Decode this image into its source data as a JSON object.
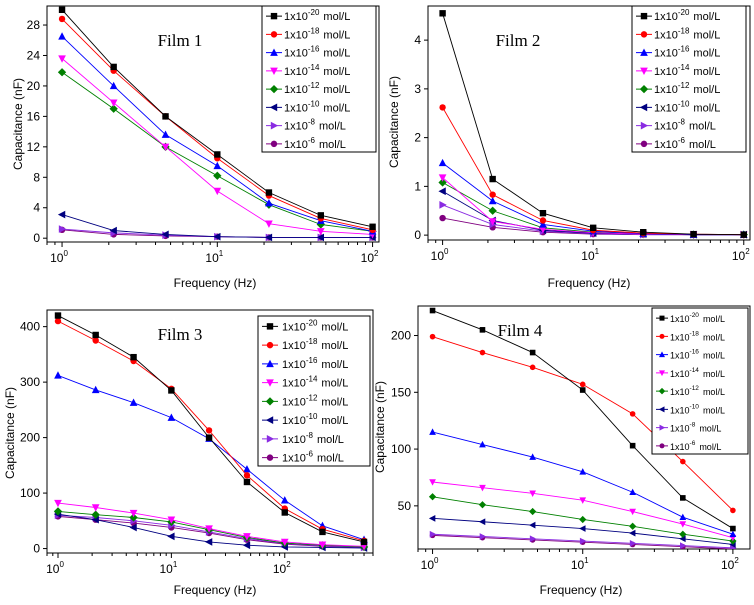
{
  "chart_data": [
    {
      "type": "line",
      "title": "Film 1",
      "xlabel": "Frequency (Hz)",
      "ylabel": "Capacitance (nF)",
      "xscale": "log",
      "xlim": [
        0.8,
        110
      ],
      "ylim": [
        -0.5,
        30.5
      ],
      "yticks": [
        0,
        4,
        8,
        12,
        16,
        20,
        24,
        28
      ],
      "xticks": [
        {
          "base": "10",
          "exp": "0"
        },
        {
          "base": "10",
          "exp": "1"
        },
        {
          "base": "10",
          "exp": "2"
        }
      ],
      "legend_position": "top-right",
      "x": [
        1,
        2.15,
        4.64,
        10,
        21.5,
        46.4,
        100
      ],
      "series": [
        {
          "name": "1x10-20 mol/L",
          "prefix": "1x10",
          "exp": "-20",
          "suffix": "mol/L",
          "color": "#000000",
          "marker": "square",
          "values": [
            30,
            22.5,
            16,
            11,
            6,
            3,
            1.5
          ]
        },
        {
          "name": "1x10-18 mol/L",
          "prefix": "1x10",
          "exp": "-18",
          "suffix": "mol/L",
          "color": "#ff0000",
          "marker": "circle",
          "values": [
            28.8,
            22,
            16,
            10.5,
            5.6,
            2.6,
            1.1
          ]
        },
        {
          "name": "1x10-16 mol/L",
          "prefix": "1x10",
          "exp": "-16",
          "suffix": "mol/L",
          "color": "#0000ff",
          "marker": "triangle-up",
          "values": [
            26.5,
            20,
            13.6,
            9.5,
            4.6,
            2.3,
            0.9
          ]
        },
        {
          "name": "1x10-14 mol/L",
          "prefix": "1x10",
          "exp": "-14",
          "suffix": "mol/L",
          "color": "#ff00ff",
          "marker": "triangle-down",
          "values": [
            23.6,
            17.8,
            12,
            6.2,
            1.9,
            0.9,
            0.5
          ]
        },
        {
          "name": "1x10-12 mol/L",
          "prefix": "1x10",
          "exp": "-12",
          "suffix": "mol/L",
          "color": "#008000",
          "marker": "diamond",
          "values": [
            21.8,
            17,
            12,
            8.2,
            4.4,
            1.8,
            0.9
          ]
        },
        {
          "name": "1x10-10 mol/L",
          "prefix": "1x10",
          "exp": "-10",
          "suffix": "mol/L",
          "color": "#000080",
          "marker": "triangle-left",
          "values": [
            3.1,
            1,
            0.5,
            0.2,
            0.1,
            0.1,
            0.1
          ]
        },
        {
          "name": "1x10-8 mol/L",
          "prefix": "1x10",
          "exp": "-8",
          "suffix": "mol/L",
          "color": "#8a2be2",
          "marker": "triangle-right",
          "values": [
            1.2,
            0.7,
            0.4,
            0.2,
            0.1,
            0.1,
            0.1
          ]
        },
        {
          "name": "1x10-6 mol/L",
          "prefix": "1x10",
          "exp": "-6",
          "suffix": "mol/L",
          "color": "#800080",
          "marker": "circle",
          "values": [
            1.1,
            0.5,
            0.3,
            0.2,
            0.1,
            0.1,
            0.1
          ]
        }
      ]
    },
    {
      "type": "line",
      "title": "Film 2",
      "xlabel": "Frequency (Hz)",
      "ylabel": "Capacitance (nF)",
      "xscale": "log",
      "xlim": [
        0.8,
        110
      ],
      "ylim": [
        -0.1,
        4.7
      ],
      "yticks": [
        0,
        1,
        2,
        3,
        4
      ],
      "xticks": [
        {
          "base": "10",
          "exp": "0"
        },
        {
          "base": "10",
          "exp": "1"
        },
        {
          "base": "10",
          "exp": "2"
        }
      ],
      "legend_position": "top-right",
      "x": [
        1,
        2.15,
        4.64,
        10,
        21.5,
        46.4,
        100
      ],
      "series": [
        {
          "name": "1x10-20 mol/L",
          "prefix": "1x10",
          "exp": "-20",
          "suffix": "mol/L",
          "color": "#000000",
          "marker": "square",
          "values": [
            4.55,
            1.15,
            0.45,
            0.15,
            0.06,
            0.02,
            0.01
          ]
        },
        {
          "name": "1x10-18 mol/L",
          "prefix": "1x10",
          "exp": "-18",
          "suffix": "mol/L",
          "color": "#ff0000",
          "marker": "circle",
          "values": [
            2.62,
            0.83,
            0.3,
            0.1,
            0.04,
            0.02,
            0.01
          ]
        },
        {
          "name": "1x10-16 mol/L",
          "prefix": "1x10",
          "exp": "-16",
          "suffix": "mol/L",
          "color": "#0000ff",
          "marker": "triangle-up",
          "values": [
            1.48,
            0.7,
            0.22,
            0.08,
            0.03,
            0.01,
            0.01
          ]
        },
        {
          "name": "1x10-14 mol/L",
          "prefix": "1x10",
          "exp": "-14",
          "suffix": "mol/L",
          "color": "#ff00ff",
          "marker": "triangle-down",
          "values": [
            1.18,
            0.28,
            0.12,
            0.05,
            0.02,
            0.01,
            0.01
          ]
        },
        {
          "name": "1x10-12 mol/L",
          "prefix": "1x10",
          "exp": "-12",
          "suffix": "mol/L",
          "color": "#008000",
          "marker": "diamond",
          "values": [
            1.08,
            0.5,
            0.15,
            0.06,
            0.02,
            0.01,
            0.01
          ]
        },
        {
          "name": "1x10-10 mol/L",
          "prefix": "1x10",
          "exp": "-10",
          "suffix": "mol/L",
          "color": "#000080",
          "marker": "triangle-left",
          "values": [
            0.9,
            0.3,
            0.1,
            0.04,
            0.02,
            0.01,
            0.01
          ]
        },
        {
          "name": "1x10-8 mol/L",
          "prefix": "1x10",
          "exp": "-8",
          "suffix": "mol/L",
          "color": "#8a2be2",
          "marker": "triangle-right",
          "values": [
            0.62,
            0.22,
            0.08,
            0.03,
            0.01,
            0.01,
            0.01
          ]
        },
        {
          "name": "1x10-6 mol/L",
          "prefix": "1x10",
          "exp": "-6",
          "suffix": "mol/L",
          "color": "#800080",
          "marker": "circle",
          "values": [
            0.35,
            0.16,
            0.06,
            0.02,
            0.01,
            0.01,
            0.01
          ]
        }
      ]
    },
    {
      "type": "line",
      "title": "Film 3",
      "xlabel": "Frequency (Hz)",
      "ylabel": "Capacitance (nF)",
      "xscale": "log",
      "xlim": [
        0.8,
        600
      ],
      "ylim": [
        -8,
        430
      ],
      "yticks": [
        0,
        100,
        200,
        300,
        400
      ],
      "xticks": [
        {
          "base": "10",
          "exp": "0"
        },
        {
          "base": "10",
          "exp": "1"
        },
        {
          "base": "10",
          "exp": "2"
        }
      ],
      "legend_position": "top-right",
      "x": [
        1,
        2.15,
        4.64,
        10,
        21.5,
        46.4,
        100,
        215,
        500
      ],
      "series": [
        {
          "name": "1x10-20 mol/L",
          "prefix": "1x10",
          "exp": "-20",
          "suffix": "mol/L",
          "color": "#000000",
          "marker": "square",
          "values": [
            420,
            385,
            345,
            285,
            200,
            120,
            65,
            30,
            12
          ]
        },
        {
          "name": "1x10-18 mol/L",
          "prefix": "1x10",
          "exp": "-18",
          "suffix": "mol/L",
          "color": "#ff0000",
          "marker": "circle",
          "values": [
            410,
            375,
            338,
            288,
            213,
            132,
            72,
            35,
            14
          ]
        },
        {
          "name": "1x10-16 mol/L",
          "prefix": "1x10",
          "exp": "-16",
          "suffix": "mol/L",
          "color": "#0000ff",
          "marker": "triangle-up",
          "values": [
            312,
            286,
            263,
            236,
            198,
            143,
            87,
            41,
            16
          ]
        },
        {
          "name": "1x10-14 mol/L",
          "prefix": "1x10",
          "exp": "-14",
          "suffix": "mol/L",
          "color": "#ff00ff",
          "marker": "triangle-down",
          "values": [
            82,
            74,
            64,
            52,
            36,
            22,
            12,
            7,
            4
          ]
        },
        {
          "name": "1x10-12 mol/L",
          "prefix": "1x10",
          "exp": "-12",
          "suffix": "mol/L",
          "color": "#008000",
          "marker": "diamond",
          "values": [
            67,
            61,
            56,
            48,
            34,
            20,
            10,
            6,
            3
          ]
        },
        {
          "name": "1x10-10 mol/L",
          "prefix": "1x10",
          "exp": "-10",
          "suffix": "mol/L",
          "color": "#000080",
          "marker": "triangle-left",
          "values": [
            62,
            52,
            38,
            22,
            12,
            6,
            3,
            2,
            1
          ]
        },
        {
          "name": "1x10-8 mol/L",
          "prefix": "1x10",
          "exp": "-8",
          "suffix": "mol/L",
          "color": "#8a2be2",
          "marker": "triangle-right",
          "values": [
            60,
            56,
            50,
            42,
            30,
            18,
            9,
            5,
            2
          ]
        },
        {
          "name": "1x10-6 mol/L",
          "prefix": "1x10",
          "exp": "-6",
          "suffix": "mol/L",
          "color": "#800080",
          "marker": "circle",
          "values": [
            58,
            52,
            46,
            38,
            28,
            16,
            8,
            4,
            2
          ]
        }
      ]
    },
    {
      "type": "line",
      "title": "Film 4",
      "xlabel": "Frequency (Hz)",
      "ylabel": "Capacitance (nF)",
      "xscale": "log",
      "xlim": [
        0.8,
        130
      ],
      "ylim": [
        12,
        226
      ],
      "yticks": [
        50,
        100,
        150,
        200
      ],
      "xticks": [
        {
          "base": "10",
          "exp": "0"
        },
        {
          "base": "10",
          "exp": "1"
        },
        {
          "base": "10",
          "exp": "2"
        }
      ],
      "legend_position": "top-right",
      "x": [
        1,
        2.15,
        4.64,
        10,
        21.5,
        46.4,
        100
      ],
      "series": [
        {
          "name": "1x10-20 mol/L",
          "prefix": "1x10",
          "exp": "-20",
          "suffix": "mol/L",
          "color": "#000000",
          "marker": "square",
          "values": [
            222,
            205,
            185,
            152,
            103,
            57,
            30
          ]
        },
        {
          "name": "1x10-18 mol/L",
          "prefix": "1x10",
          "exp": "-18",
          "suffix": "mol/L",
          "color": "#ff0000",
          "marker": "circle",
          "values": [
            199,
            185,
            172,
            157,
            131,
            89,
            46
          ]
        },
        {
          "name": "1x10-16 mol/L",
          "prefix": "1x10",
          "exp": "-16",
          "suffix": "mol/L",
          "color": "#0000ff",
          "marker": "triangle-up",
          "values": [
            115,
            104,
            93,
            80,
            62,
            40,
            25
          ]
        },
        {
          "name": "1x10-14 mol/L",
          "prefix": "1x10",
          "exp": "-14",
          "suffix": "mol/L",
          "color": "#ff00ff",
          "marker": "triangle-down",
          "values": [
            71,
            66,
            61,
            55,
            45,
            34,
            22
          ]
        },
        {
          "name": "1x10-12 mol/L",
          "prefix": "1x10",
          "exp": "-12",
          "suffix": "mol/L",
          "color": "#008000",
          "marker": "diamond",
          "values": [
            58,
            51,
            45,
            38,
            32,
            25,
            19
          ]
        },
        {
          "name": "1x10-10 mol/L",
          "prefix": "1x10",
          "exp": "-10",
          "suffix": "mol/L",
          "color": "#000080",
          "marker": "triangle-left",
          "values": [
            39,
            36,
            33,
            30,
            26,
            21,
            16
          ]
        },
        {
          "name": "1x10-8 mol/L",
          "prefix": "1x10",
          "exp": "-8",
          "suffix": "mol/L",
          "color": "#8a2be2",
          "marker": "triangle-right",
          "values": [
            25,
            23,
            21,
            19,
            17,
            15,
            13
          ]
        },
        {
          "name": "1x10-6 mol/L",
          "prefix": "1x10",
          "exp": "-6",
          "suffix": "mol/L",
          "color": "#800080",
          "marker": "circle",
          "values": [
            24,
            22,
            20,
            18,
            16,
            14,
            12
          ]
        }
      ]
    }
  ]
}
